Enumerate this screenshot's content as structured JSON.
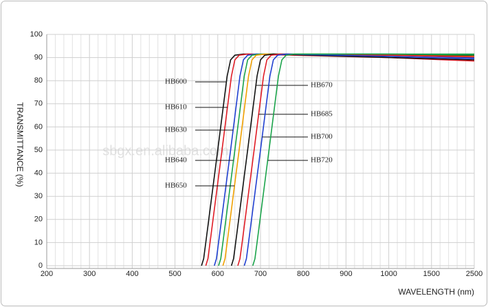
{
  "chart_data": {
    "type": "line",
    "ylabel": "TRANSMITTANCE  (%)",
    "xlabel": "WAVELENGTH (nm)",
    "watermark": "sbgx.en.alibaba.com",
    "xlim": [
      200,
      2500
    ],
    "xticks": [
      200,
      300,
      400,
      500,
      600,
      700,
      800,
      900,
      1000,
      1500,
      2500
    ],
    "ylim": [
      0,
      100
    ],
    "yticks": [
      0,
      10,
      20,
      30,
      40,
      50,
      60,
      70,
      80,
      90,
      100
    ],
    "grid": true,
    "series": [
      {
        "name": "HB600",
        "color": "#111111",
        "x": [
          562,
          567,
          572,
          600,
          622,
          630,
          640,
          660,
          1000,
          2500
        ],
        "values": [
          0,
          3,
          10,
          50,
          82,
          89,
          91,
          91.5,
          91,
          91
        ]
      },
      {
        "name": "HB610",
        "color": "#e01b24",
        "x": [
          572,
          577,
          582,
          610,
          632,
          640,
          650,
          670,
          1000,
          2500
        ],
        "values": [
          0,
          3,
          10,
          50,
          82,
          89,
          91,
          91.5,
          90,
          88.5
        ]
      },
      {
        "name": "HB630",
        "color": "#1f3fd0",
        "x": [
          592,
          597,
          602,
          630,
          652,
          660,
          670,
          690,
          1000,
          2500
        ],
        "values": [
          0,
          3,
          10,
          50,
          82,
          89,
          91,
          91.5,
          91,
          90
        ]
      },
      {
        "name": "HB640",
        "color": "#1aa34a",
        "x": [
          602,
          607,
          612,
          640,
          662,
          670,
          680,
          700,
          1000,
          2500
        ],
        "values": [
          0,
          3,
          10,
          50,
          82,
          89,
          91,
          91.5,
          91.5,
          91.5
        ]
      },
      {
        "name": "HB650",
        "color": "#f0a000",
        "x": [
          612,
          617,
          622,
          650,
          672,
          680,
          690,
          710,
          1000,
          2500
        ],
        "values": [
          0,
          3,
          10,
          50,
          82,
          89,
          91,
          91.5,
          91,
          90.5
        ]
      },
      {
        "name": "HB670",
        "color": "#111111",
        "x": [
          632,
          637,
          642,
          670,
          692,
          700,
          710,
          730,
          1000,
          2500
        ],
        "values": [
          0,
          3,
          10,
          50,
          82,
          89,
          91,
          91.5,
          90,
          89
        ]
      },
      {
        "name": "HB685",
        "color": "#e01b24",
        "x": [
          647,
          652,
          657,
          685,
          707,
          715,
          725,
          745,
          1000,
          2500
        ],
        "values": [
          0,
          3,
          10,
          50,
          82,
          89,
          91,
          91.5,
          91,
          90.3
        ]
      },
      {
        "name": "HB700",
        "color": "#1f3fd0",
        "x": [
          662,
          667,
          672,
          700,
          722,
          730,
          740,
          760,
          1000,
          2500
        ],
        "values": [
          0,
          3,
          10,
          50,
          82,
          89,
          91,
          91.5,
          90.5,
          89.5
        ]
      },
      {
        "name": "HB720",
        "color": "#1aa34a",
        "x": [
          682,
          687,
          692,
          720,
          742,
          750,
          760,
          780,
          1000,
          2500
        ],
        "values": [
          0,
          3,
          10,
          50,
          82,
          89,
          91,
          91.5,
          91.5,
          91.2
        ]
      }
    ]
  }
}
